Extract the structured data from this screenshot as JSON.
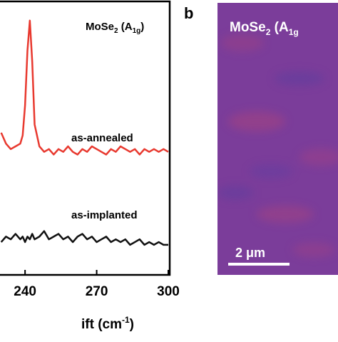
{
  "chart_data": {
    "type": "line",
    "x_label": [
      "ift (cm",
      "-1",
      ")"
    ],
    "annotation": [
      "MoSe",
      "2",
      " (A",
      "1g",
      ")"
    ],
    "x": [
      230,
      232,
      234,
      236,
      238,
      239,
      240,
      241,
      242,
      243,
      244,
      246,
      248,
      250,
      252,
      254,
      256,
      258,
      260,
      262,
      264,
      266,
      268,
      270,
      272,
      274,
      276,
      278,
      280,
      282,
      284,
      286,
      288,
      290,
      292,
      294,
      296,
      298,
      300
    ],
    "series": [
      {
        "name": "as-annealed",
        "color": "#e8392f",
        "values": [
          52,
          48,
          46,
          47,
          48,
          51,
          62,
          82,
          93,
          78,
          55,
          47,
          45,
          46,
          44,
          46,
          45,
          47,
          45,
          44,
          46,
          45,
          47,
          46,
          45,
          44,
          46,
          45,
          47,
          46,
          45,
          46,
          44,
          46,
          45,
          46,
          45,
          46,
          45
        ]
      },
      {
        "name": "as-implanted",
        "color": "#111111",
        "values": [
          12,
          14,
          13,
          15,
          13,
          14,
          12,
          14,
          13,
          15,
          13,
          14,
          16,
          13,
          14,
          15,
          13,
          14,
          12,
          14,
          15,
          13,
          14,
          12,
          13,
          14,
          12,
          13,
          12,
          13,
          11,
          12,
          13,
          11,
          12,
          11,
          12,
          11,
          11
        ]
      }
    ],
    "xlim": [
      229.5,
      300.6
    ],
    "xticks": [
      240,
      270,
      300
    ],
    "ylim": [
      0,
      100
    ]
  },
  "panel_b": {
    "label": "b",
    "title": [
      "MoSe",
      "2",
      " (A",
      "1g"
    ],
    "scale_bar": "2 μm"
  }
}
